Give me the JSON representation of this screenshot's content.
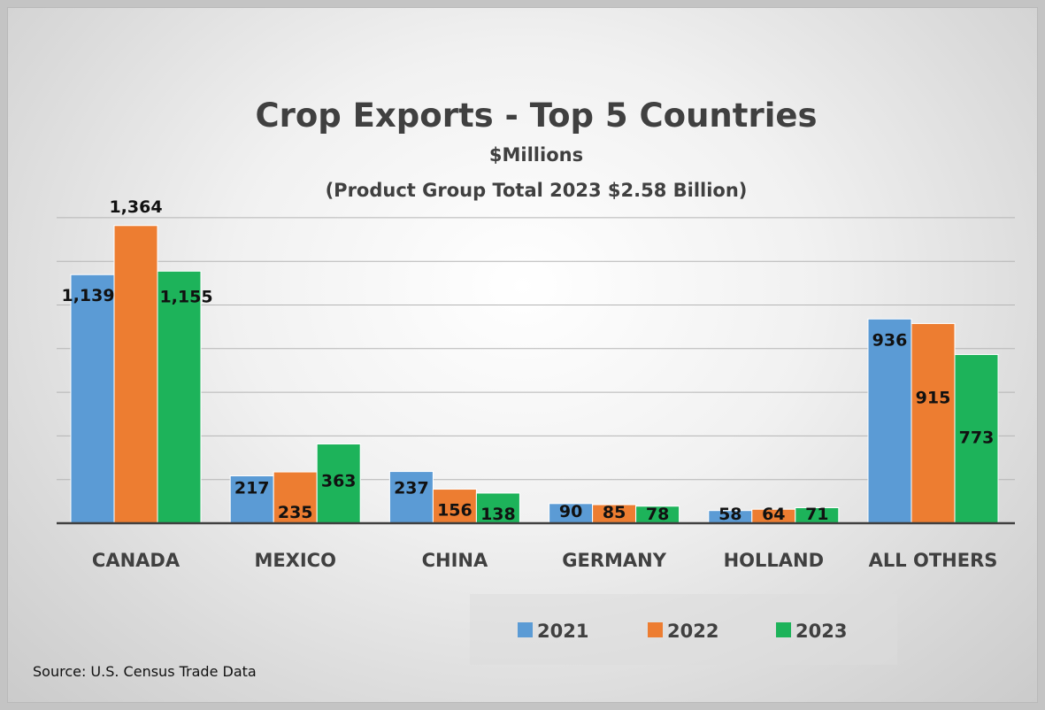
{
  "chart_data": {
    "type": "bar",
    "title": "Crop Exports - Top 5 Countries",
    "subtitle": "$Millions",
    "subtitle2": "(Product Group Total 2023 $2.58 Billion)",
    "categories": [
      "CANADA",
      "MEXICO",
      "CHINA",
      "GERMANY",
      "HOLLAND",
      "ALL OTHERS"
    ],
    "series": [
      {
        "name": "2021",
        "color": "#5b9bd5",
        "values": [
          1139,
          217,
          237,
          90,
          58,
          936
        ],
        "labels": [
          "1,139",
          "217",
          "237",
          "90",
          "58",
          "936"
        ]
      },
      {
        "name": "2022",
        "color": "#ed7d31",
        "values": [
          1364,
          235,
          156,
          85,
          64,
          915
        ],
        "labels": [
          "1,364",
          "235",
          "156",
          "85",
          "64",
          "915"
        ]
      },
      {
        "name": "2023",
        "color": "#1db35a",
        "values": [
          1155,
          363,
          138,
          78,
          71,
          773
        ],
        "labels": [
          "1,155",
          "363",
          "138",
          "78",
          "71",
          "773"
        ]
      }
    ],
    "ylim": [
      0,
      1400
    ],
    "grid": true,
    "legend": "bottom-right",
    "source": "Source: U.S. Census Trade Data"
  }
}
